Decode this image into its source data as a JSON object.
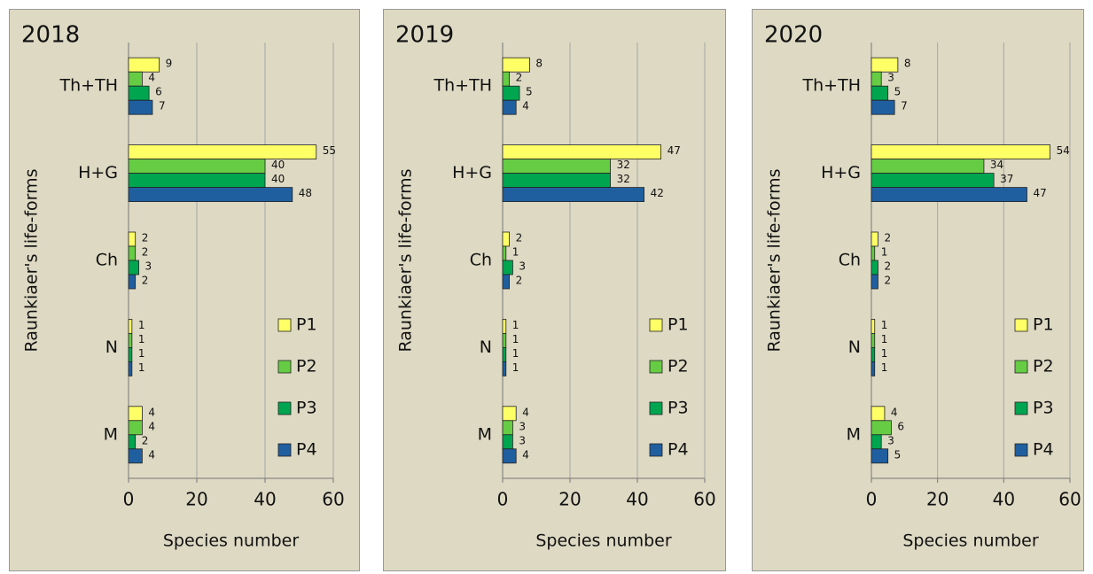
{
  "chart_data": [
    {
      "type": "bar",
      "orientation": "horizontal",
      "title": "2018",
      "x_label": "Species number",
      "y_label": "Raunkiaer's life-forms",
      "categories": [
        "Th+TH",
        "H+G",
        "Ch",
        "N",
        "M"
      ],
      "series": [
        {
          "name": "P1",
          "color": "#ffff66",
          "values": [
            9,
            55,
            2,
            1,
            4
          ]
        },
        {
          "name": "P2",
          "color": "#66cc44",
          "values": [
            4,
            40,
            2,
            1,
            4
          ]
        },
        {
          "name": "P3",
          "color": "#00a550",
          "values": [
            6,
            40,
            3,
            1,
            2
          ]
        },
        {
          "name": "P4",
          "color": "#1f5fa0",
          "values": [
            7,
            48,
            2,
            1,
            4
          ]
        }
      ],
      "xlim": [
        0,
        60
      ],
      "xticks": [
        0,
        20,
        40,
        60
      ],
      "grid": true,
      "legend": "lower right"
    },
    {
      "type": "bar",
      "orientation": "horizontal",
      "title": "2019",
      "x_label": "Species number",
      "y_label": "Raunkiaer's life-forms",
      "categories": [
        "Th+TH",
        "H+G",
        "Ch",
        "N",
        "M"
      ],
      "series": [
        {
          "name": "P1",
          "color": "#ffff66",
          "values": [
            8,
            47,
            2,
            1,
            4
          ]
        },
        {
          "name": "P2",
          "color": "#66cc44",
          "values": [
            2,
            32,
            1,
            1,
            3
          ]
        },
        {
          "name": "P3",
          "color": "#00a550",
          "values": [
            5,
            32,
            3,
            1,
            3
          ]
        },
        {
          "name": "P4",
          "color": "#1f5fa0",
          "values": [
            4,
            42,
            2,
            1,
            4
          ]
        }
      ],
      "xlim": [
        0,
        60
      ],
      "xticks": [
        0,
        20,
        40,
        60
      ],
      "grid": true,
      "legend": "lower right"
    },
    {
      "type": "bar",
      "orientation": "horizontal",
      "title": "2020",
      "x_label": "Species number",
      "y_label": "Raunkiaer's life-forms",
      "categories": [
        "Th+TH",
        "H+G",
        "Ch",
        "N",
        "M"
      ],
      "series": [
        {
          "name": "P1",
          "color": "#ffff66",
          "values": [
            8,
            54,
            2,
            1,
            4
          ]
        },
        {
          "name": "P2",
          "color": "#66cc44",
          "values": [
            3,
            34,
            1,
            1,
            6
          ]
        },
        {
          "name": "P3",
          "color": "#00a550",
          "values": [
            5,
            37,
            2,
            1,
            3
          ]
        },
        {
          "name": "P4",
          "color": "#1f5fa0",
          "values": [
            7,
            47,
            2,
            1,
            5
          ]
        }
      ],
      "xlim": [
        0,
        60
      ],
      "xticks": [
        0,
        20,
        40,
        60
      ],
      "grid": true,
      "legend": "lower right"
    }
  ]
}
